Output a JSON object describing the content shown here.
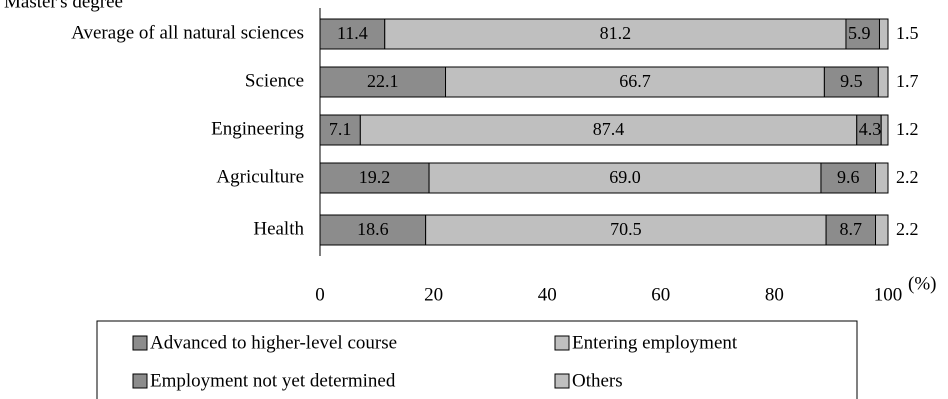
{
  "chart_data": {
    "type": "bar",
    "orientation": "horizontal",
    "stacked": true,
    "title": "Master's degree",
    "unit": "(%)",
    "xlim": [
      0,
      100
    ],
    "xticks": [
      0,
      20,
      40,
      60,
      80,
      100
    ],
    "categories": [
      "Average of all natural sciences",
      "Science",
      "Engineering",
      "Agriculture",
      "Health"
    ],
    "series": [
      {
        "name": "Advanced to higher-level course",
        "values": [
          11.4,
          22.1,
          7.1,
          19.2,
          18.6
        ],
        "color": "#8c8c8c"
      },
      {
        "name": "Entering employment",
        "values": [
          81.2,
          66.7,
          87.4,
          69.0,
          70.5
        ],
        "color": "#bfbfbf"
      },
      {
        "name": "Employment not yet determined",
        "values": [
          5.9,
          9.5,
          4.3,
          9.6,
          8.7
        ],
        "color": "#8c8c8c"
      },
      {
        "name": "Others",
        "values": [
          1.5,
          1.7,
          1.2,
          2.2,
          2.2
        ],
        "color": "#bfbfbf"
      }
    ],
    "value_labels": [
      [
        "11.4",
        "81.2",
        "5.9",
        "1.5"
      ],
      [
        "22.1",
        "66.7",
        "9.5",
        "1.7"
      ],
      [
        "7.1",
        "87.4",
        "4.3",
        "1.2"
      ],
      [
        "19.2",
        "69.0",
        "9.6",
        "2.2"
      ],
      [
        "18.6",
        "70.5",
        "8.7",
        "2.2"
      ]
    ],
    "legend_position": "bottom",
    "grid": false
  }
}
